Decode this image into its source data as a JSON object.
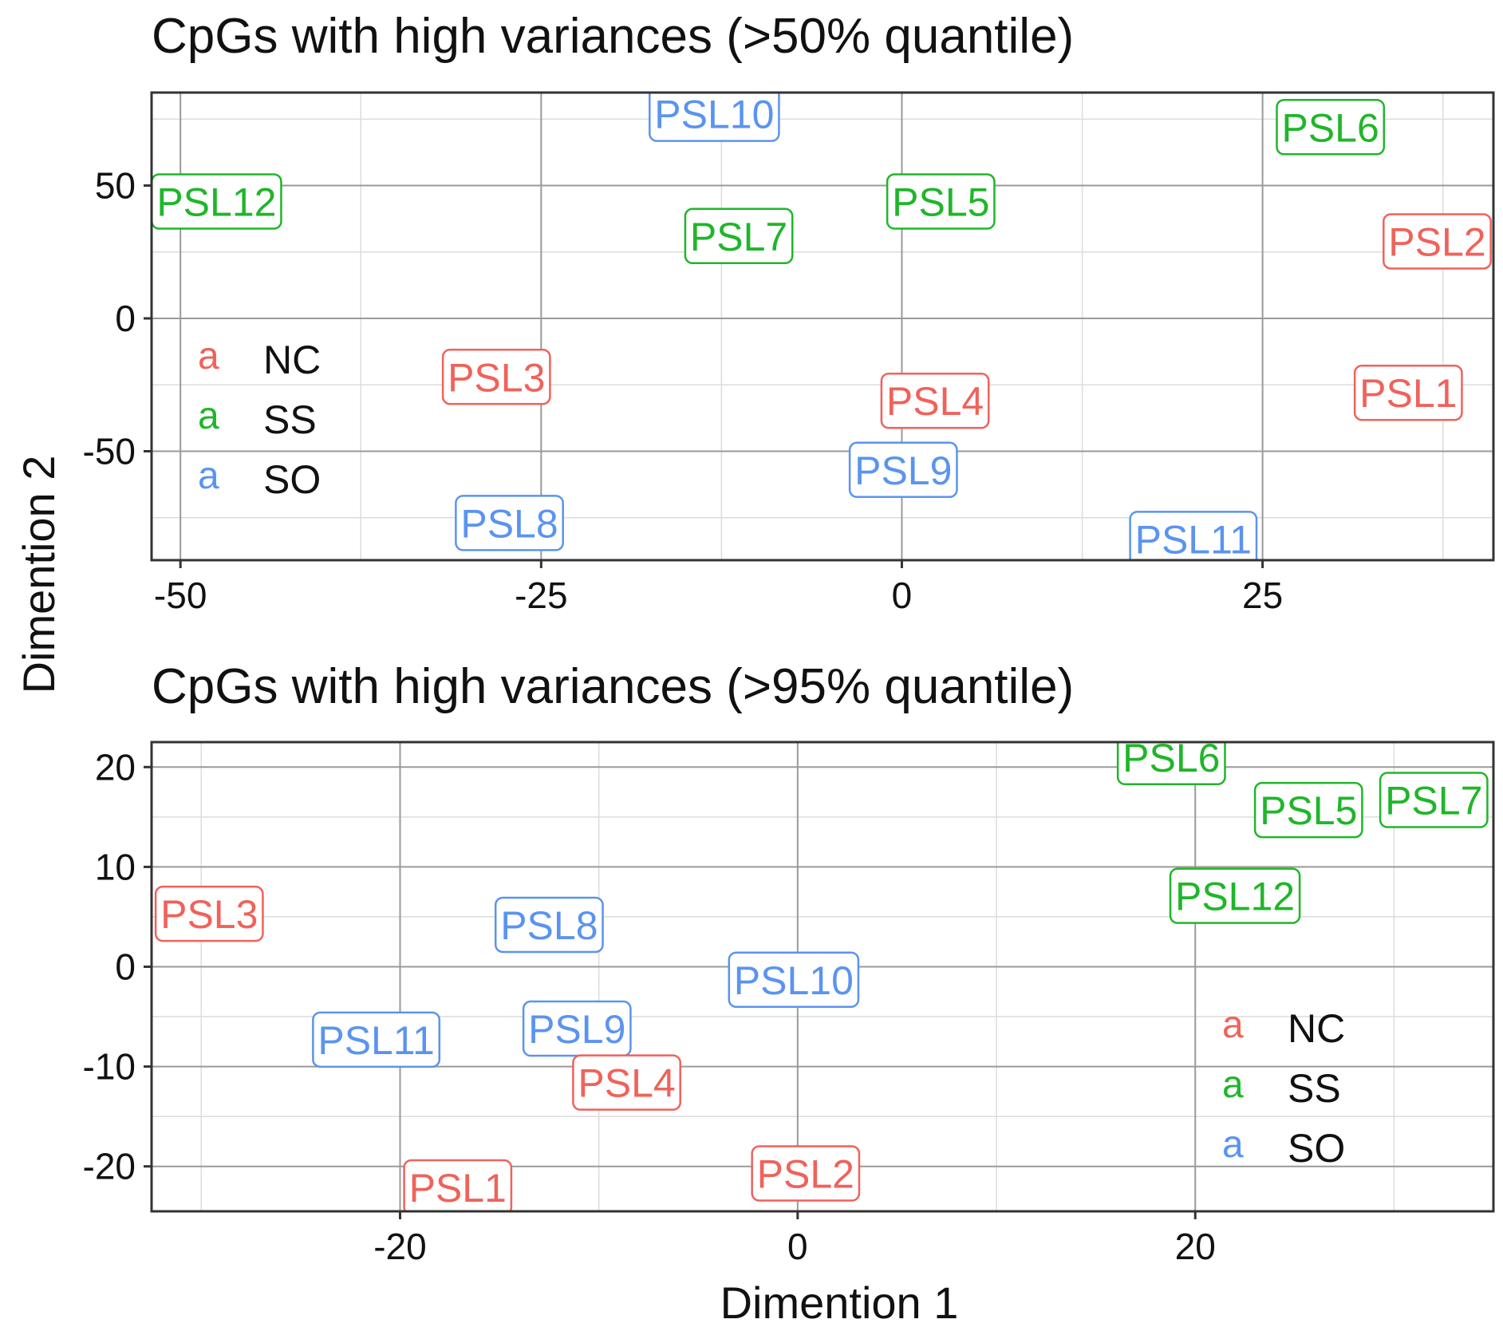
{
  "colors": {
    "NC": "#f0625a",
    "SS": "#1fb62a",
    "SO": "#5a94f0"
  },
  "ylabel_shared": "Dimention 2",
  "xlabel_shared": "Dimention 1",
  "chart_data": [
    {
      "type": "scatter",
      "title": "CpGs with high variances (>50% quantile)",
      "xlabel": "",
      "ylabel": "Dimention 2",
      "xlim": [
        -52,
        41
      ],
      "ylim": [
        -91,
        85
      ],
      "xticks": [
        -50,
        -25,
        0,
        25
      ],
      "yticks": [
        -50,
        0,
        50
      ],
      "grid": true,
      "legend": {
        "position": "left",
        "key_glyph": "a",
        "entries": [
          "NC",
          "SS",
          "SO"
        ]
      },
      "points": [
        {
          "label": "PSL10",
          "group": "SO",
          "x": -13,
          "y": 77
        },
        {
          "label": "PSL6",
          "group": "SS",
          "x": 29.7,
          "y": 72
        },
        {
          "label": "PSL12",
          "group": "SS",
          "x": -47.5,
          "y": 44
        },
        {
          "label": "PSL5",
          "group": "SS",
          "x": 2.7,
          "y": 44
        },
        {
          "label": "PSL7",
          "group": "SS",
          "x": -11.3,
          "y": 31
        },
        {
          "label": "PSL2",
          "group": "NC",
          "x": 37.1,
          "y": 29
        },
        {
          "label": "PSL3",
          "group": "NC",
          "x": -28.1,
          "y": -22
        },
        {
          "label": "PSL4",
          "group": "NC",
          "x": 2.3,
          "y": -31
        },
        {
          "label": "PSL1",
          "group": "NC",
          "x": 35.1,
          "y": -28
        },
        {
          "label": "PSL9",
          "group": "SO",
          "x": 0.1,
          "y": -57
        },
        {
          "label": "PSL8",
          "group": "SO",
          "x": -27.2,
          "y": -77
        },
        {
          "label": "PSL11",
          "group": "SO",
          "x": 20.2,
          "y": -83
        }
      ]
    },
    {
      "type": "scatter",
      "title": "CpGs with high variances (>95% quantile)",
      "xlabel": "Dimention 1",
      "ylabel": "Dimention 2",
      "xlim": [
        -32.5,
        35
      ],
      "ylim": [
        -24.5,
        22.5
      ],
      "xticks": [
        -20,
        0,
        20
      ],
      "yticks": [
        -20,
        -10,
        0,
        10,
        20
      ],
      "grid": true,
      "legend": {
        "position": "bottom-right",
        "key_glyph": "a",
        "entries": [
          "NC",
          "SS",
          "SO"
        ]
      },
      "points": [
        {
          "label": "PSL6",
          "group": "SS",
          "x": 18.8,
          "y": 21
        },
        {
          "label": "PSL5",
          "group": "SS",
          "x": 25.7,
          "y": 15.7
        },
        {
          "label": "PSL7",
          "group": "SS",
          "x": 32,
          "y": 16.7
        },
        {
          "label": "PSL12",
          "group": "SS",
          "x": 22,
          "y": 7.1
        },
        {
          "label": "PSL3",
          "group": "NC",
          "x": -29.6,
          "y": 5.3
        },
        {
          "label": "PSL8",
          "group": "SO",
          "x": -12.5,
          "y": 4.2
        },
        {
          "label": "PSL10",
          "group": "SO",
          "x": -0.2,
          "y": -1.3
        },
        {
          "label": "PSL11",
          "group": "SO",
          "x": -21.2,
          "y": -7.3
        },
        {
          "label": "PSL9",
          "group": "SO",
          "x": -11.1,
          "y": -6.2
        },
        {
          "label": "PSL4",
          "group": "NC",
          "x": -8.6,
          "y": -11.6
        },
        {
          "label": "PSL1",
          "group": "NC",
          "x": -17.1,
          "y": -22.1
        },
        {
          "label": "PSL2",
          "group": "NC",
          "x": 0.4,
          "y": -20.7
        }
      ]
    }
  ]
}
